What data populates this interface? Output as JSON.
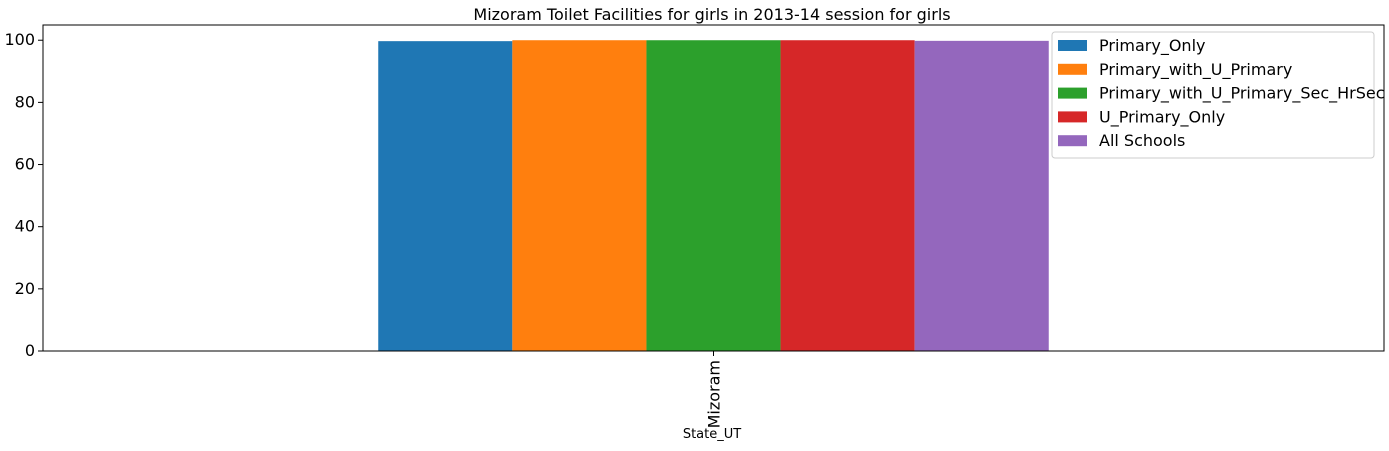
{
  "chart_data": {
    "type": "bar",
    "title": "Mizoram Toilet Facilities for girls in 2013-14 session for girls",
    "xlabel": "State_UT",
    "ylabel": "",
    "categories": [
      "Mizoram"
    ],
    "ylim": [
      0,
      104.9
    ],
    "yticks": [
      0,
      20,
      40,
      60,
      80,
      100
    ],
    "grid": false,
    "legend_position": "top-right",
    "series": [
      {
        "name": "Primary_Only",
        "values": [
          99.7
        ],
        "color": "#1f77b4"
      },
      {
        "name": "Primary_with_U_Primary",
        "values": [
          100
        ],
        "color": "#ff7f0e"
      },
      {
        "name": "Primary_with_U_Primary_Sec_HrSec",
        "values": [
          100
        ],
        "color": "#2ca02c"
      },
      {
        "name": "U_Primary_Only",
        "values": [
          100
        ],
        "color": "#d62728"
      },
      {
        "name": "All Schools",
        "values": [
          99.8
        ],
        "color": "#9467bd"
      }
    ]
  }
}
